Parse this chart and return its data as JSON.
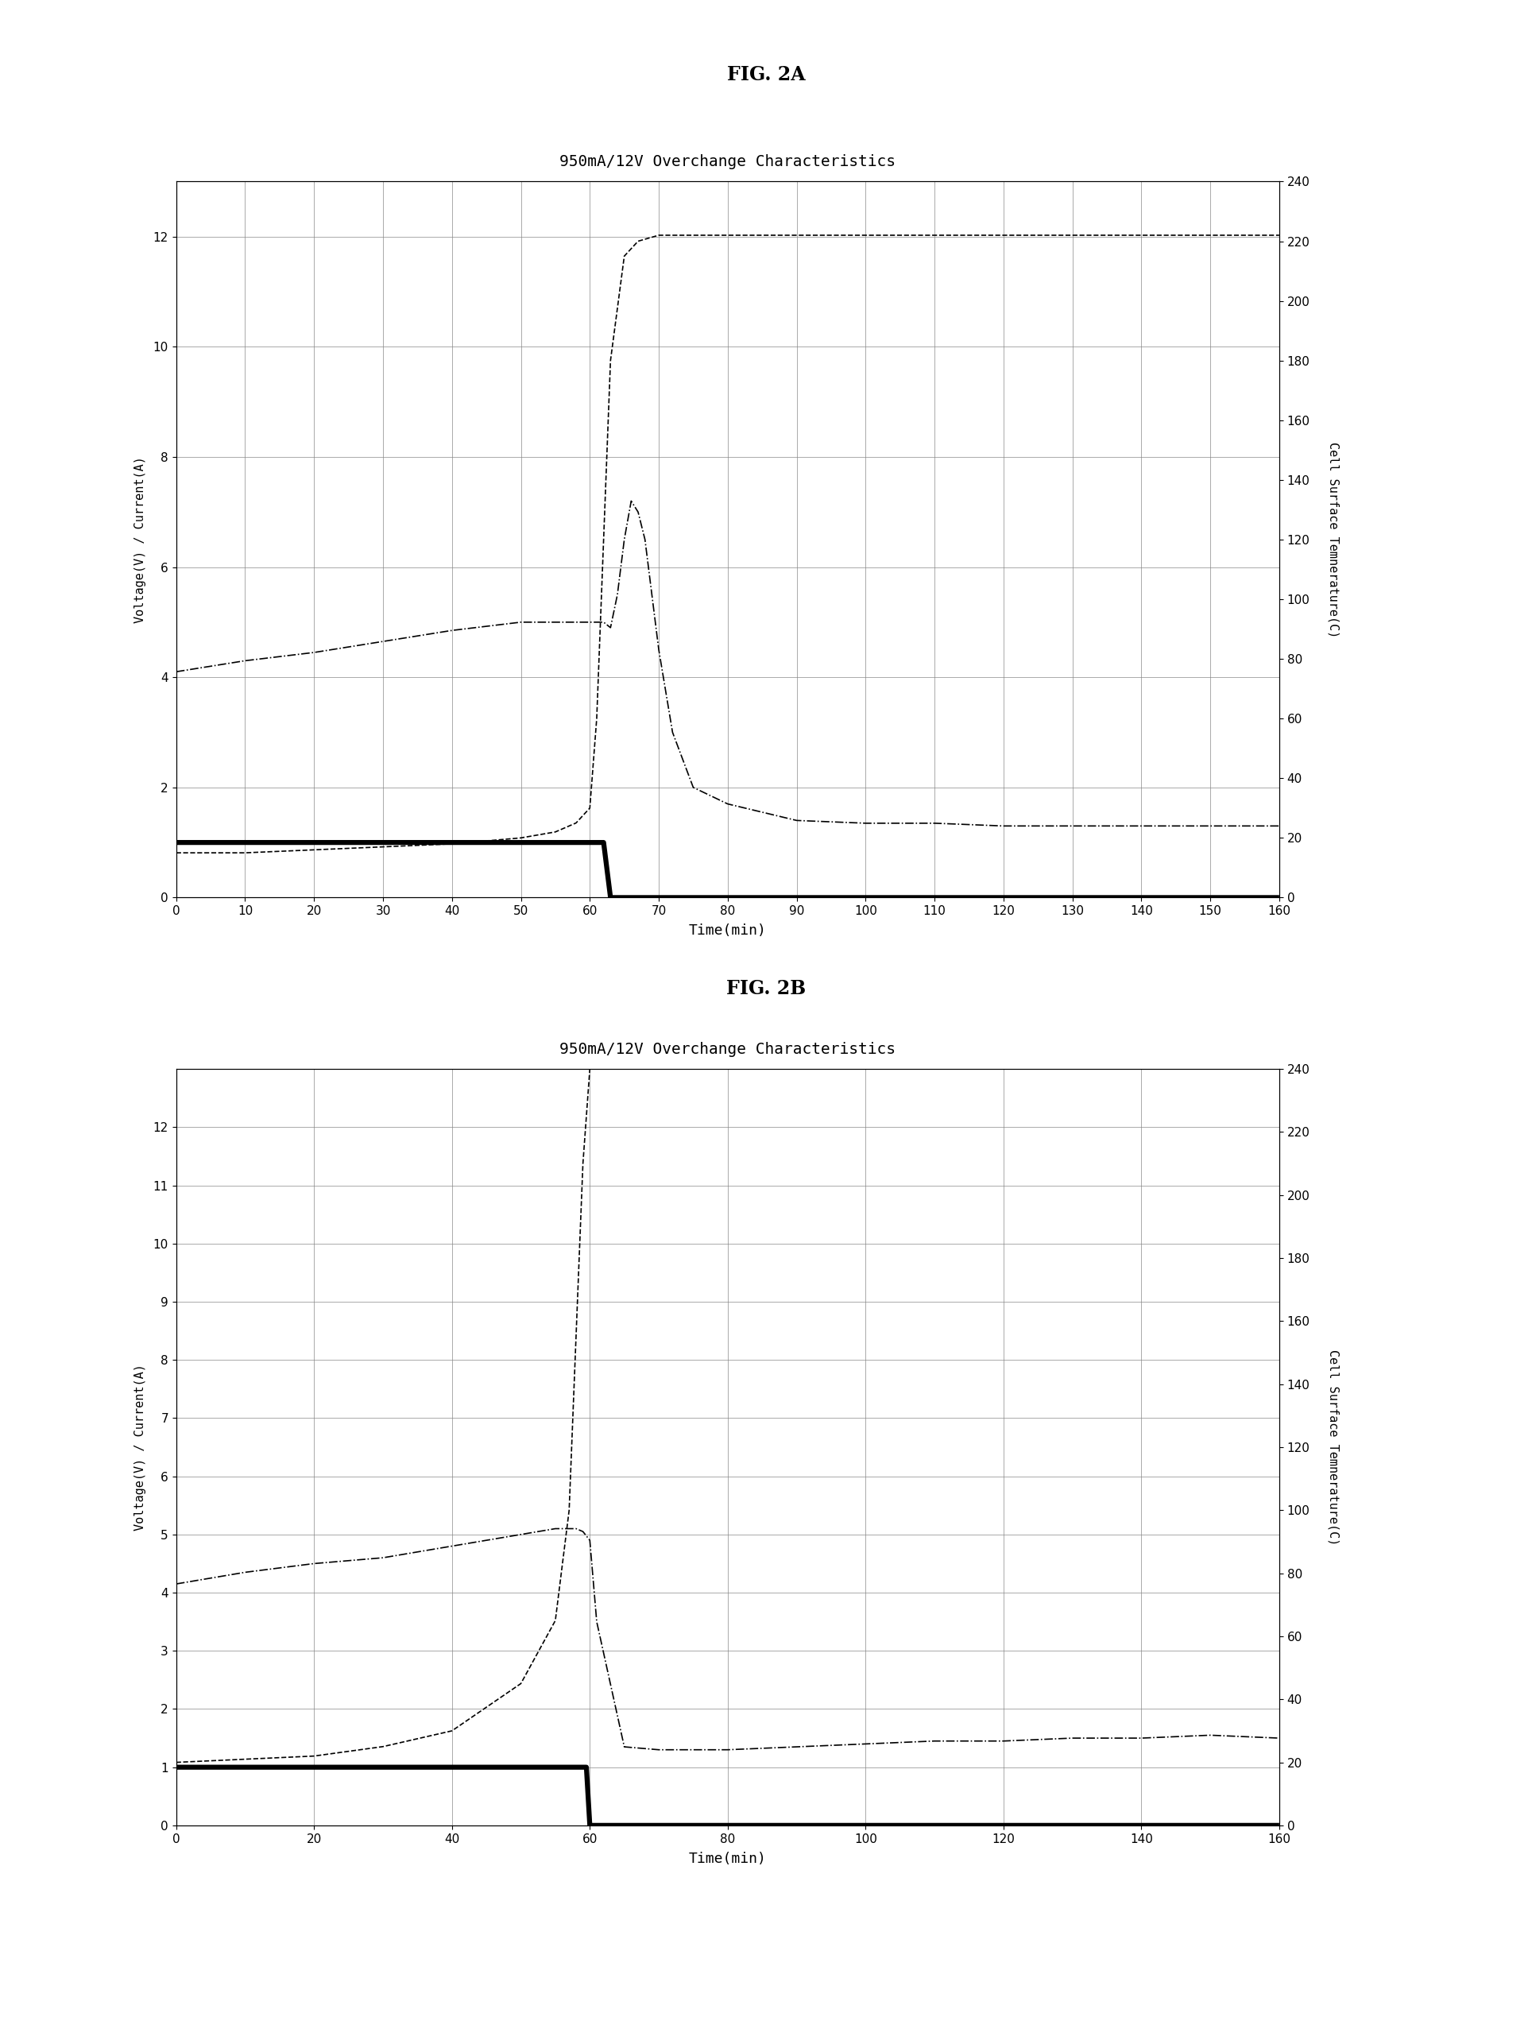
{
  "fig2a_label": "FIG. 2A",
  "fig2b_label": "FIG. 2B",
  "chart_title": "950mA/12V Overchange Characteristics",
  "xlabel": "Time(min)",
  "ylabel_left": "Voltage(V) / Current(A)",
  "ylabel_right": "Cell Surface Temnerature(C)",
  "xlim": [
    0,
    160
  ],
  "ylim_left": [
    0.0,
    13.0
  ],
  "ylim_right": [
    0,
    240
  ],
  "xticks_2a": [
    0,
    10,
    20,
    30,
    40,
    50,
    60,
    70,
    80,
    90,
    100,
    110,
    120,
    130,
    140,
    150,
    160
  ],
  "xticks_2b": [
    0,
    20,
    40,
    60,
    80,
    100,
    120,
    140,
    160
  ],
  "yticks_left_2a": [
    0.0,
    2.0,
    4.0,
    6.0,
    8.0,
    10.0,
    12.0
  ],
  "yticks_left_2b": [
    0.0,
    1.0,
    2.0,
    3.0,
    4.0,
    5.0,
    6.0,
    7.0,
    8.0,
    9.0,
    10.0,
    11.0,
    12.0
  ],
  "yticks_right": [
    0,
    20,
    40,
    60,
    80,
    100,
    120,
    140,
    160,
    180,
    200,
    220,
    240
  ],
  "fig2a_voltage_t": [
    0,
    5,
    10,
    20,
    30,
    40,
    50,
    55,
    60,
    62,
    63,
    64,
    65,
    66,
    67,
    68,
    69,
    70,
    72,
    75,
    80,
    90,
    100,
    110,
    120,
    130,
    140,
    150,
    160
  ],
  "fig2a_voltage_v": [
    4.1,
    4.2,
    4.3,
    4.45,
    4.65,
    4.85,
    5.0,
    5.0,
    5.0,
    5.0,
    4.9,
    5.5,
    6.5,
    7.2,
    7.0,
    6.5,
    5.5,
    4.5,
    3.0,
    2.0,
    1.7,
    1.4,
    1.35,
    1.35,
    1.3,
    1.3,
    1.3,
    1.3,
    1.3
  ],
  "fig2a_current_t": [
    0,
    62,
    63,
    160
  ],
  "fig2a_current_i": [
    1.0,
    1.0,
    0.0,
    0.0
  ],
  "fig2a_temp_t": [
    0,
    10,
    20,
    30,
    40,
    50,
    55,
    58,
    60,
    61,
    62,
    63,
    65,
    67,
    70,
    80,
    90,
    100,
    120,
    140,
    160
  ],
  "fig2a_temp_c": [
    15,
    15,
    16,
    17,
    18,
    20,
    22,
    25,
    30,
    60,
    120,
    180,
    215,
    220,
    222,
    222,
    222,
    222,
    222,
    222,
    222
  ],
  "fig2b_voltage_t": [
    0,
    5,
    10,
    20,
    30,
    40,
    50,
    55,
    58,
    59,
    60,
    61,
    65,
    70,
    80,
    90,
    100,
    110,
    120,
    130,
    140,
    150,
    160
  ],
  "fig2b_voltage_v": [
    4.15,
    4.25,
    4.35,
    4.5,
    4.6,
    4.8,
    5.0,
    5.1,
    5.1,
    5.05,
    4.9,
    3.5,
    1.35,
    1.3,
    1.3,
    1.35,
    1.4,
    1.45,
    1.45,
    1.5,
    1.5,
    1.55,
    1.5
  ],
  "fig2b_current_t": [
    0,
    59.5,
    60,
    160
  ],
  "fig2b_current_i": [
    1.0,
    1.0,
    0.0,
    0.0
  ],
  "fig2b_temp_t": [
    0,
    10,
    20,
    30,
    40,
    50,
    55,
    57,
    58,
    59,
    60,
    61,
    62,
    65,
    70,
    80,
    100,
    120,
    140,
    160
  ],
  "fig2b_temp_c": [
    20,
    21,
    22,
    25,
    30,
    45,
    65,
    100,
    155,
    210,
    240,
    240,
    240,
    240,
    240,
    240,
    240,
    240,
    240,
    240
  ]
}
